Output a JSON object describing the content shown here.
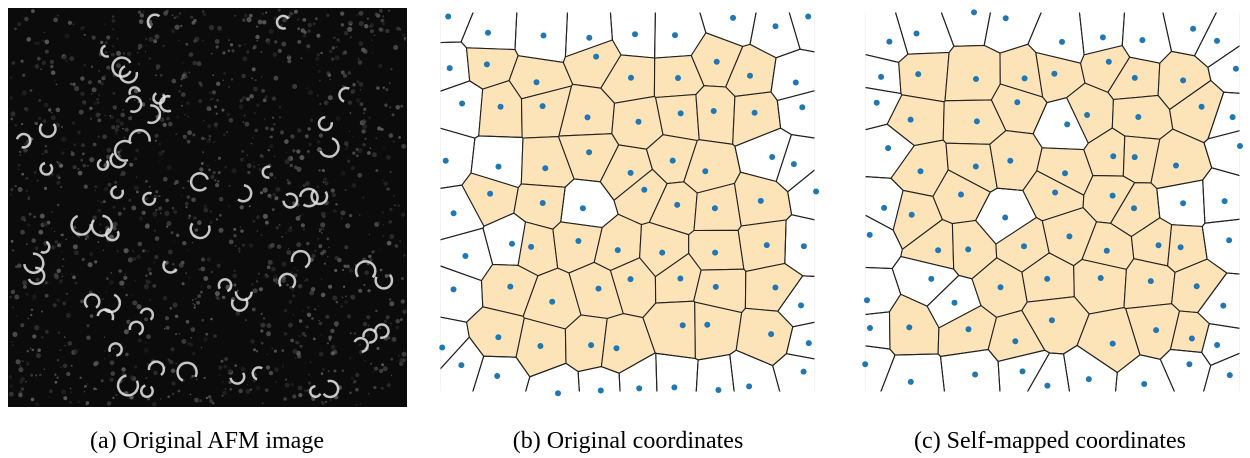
{
  "panels": [
    {
      "caption": "(a) Original AFM image"
    },
    {
      "caption": "(b) Original coordinates"
    },
    {
      "caption": "(c) Self-mapped coordinates"
    }
  ]
}
